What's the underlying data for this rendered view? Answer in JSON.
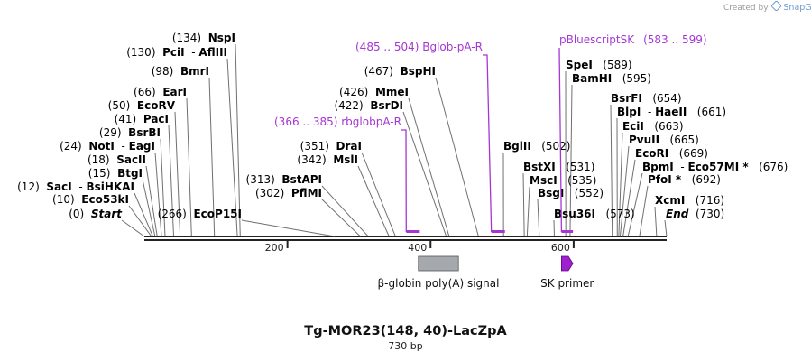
{
  "branding": {
    "prefix": "Created by",
    "brand": "SnapGene"
  },
  "map": {
    "title": "Tg-MOR23(148, 40)-LacZpA",
    "subtitle": "730 bp",
    "length": 730,
    "ticks": [
      200,
      400,
      600
    ],
    "enzymes": [
      {
        "pos": "(0)",
        "name": "Start",
        "site": 0,
        "italic": true
      },
      {
        "pos": "(10)",
        "name": "Eco53kI",
        "site": 10
      },
      {
        "pos": "(12)",
        "name": "SacI",
        "name2": "BsiHKAI",
        "site": 12
      },
      {
        "pos": "(15)",
        "name": "BtgI",
        "site": 15
      },
      {
        "pos": "(18)",
        "name": "SacII",
        "site": 18
      },
      {
        "pos": "(24)",
        "name": "NotI",
        "name2": "EagI",
        "site": 24
      },
      {
        "pos": "(29)",
        "name": "BsrBI",
        "site": 29
      },
      {
        "pos": "(41)",
        "name": "PacI",
        "site": 41
      },
      {
        "pos": "(50)",
        "name": "EcoRV",
        "site": 50
      },
      {
        "pos": "(66)",
        "name": "EarI",
        "site": 66
      },
      {
        "pos": "(98)",
        "name": "BmrI",
        "site": 98
      },
      {
        "pos": "(130)",
        "name": "PciI",
        "name2": "AflIII",
        "site": 130
      },
      {
        "pos": "(134)",
        "name": "NspI",
        "site": 134
      },
      {
        "pos": "(266)",
        "name": "EcoP15I",
        "site": 266
      },
      {
        "pos": "(302)",
        "name": "PflMI",
        "site": 302
      },
      {
        "pos": "(313)",
        "name": "BstAPI",
        "site": 313
      },
      {
        "pos": "(342)",
        "name": "MslI",
        "site": 342
      },
      {
        "pos": "(351)",
        "name": "DraI",
        "site": 351
      },
      {
        "pos": "(422)",
        "name": "BsrDI",
        "site": 422
      },
      {
        "pos": "(426)",
        "name": "MmeI",
        "site": 426
      },
      {
        "pos": "(467)",
        "name": "BspHI",
        "site": 467
      },
      {
        "pos": "(502)",
        "name": "BglII",
        "site": 502
      },
      {
        "pos": "(531)",
        "name": "BstXI",
        "site": 531
      },
      {
        "pos": "(535)",
        "name": "MscI",
        "site": 535
      },
      {
        "pos": "(552)",
        "name": "BsgI",
        "site": 552
      },
      {
        "pos": "(573)",
        "name": "Bsu36I",
        "site": 573
      },
      {
        "pos": "(589)",
        "name": "SpeI",
        "site": 589
      },
      {
        "pos": "(595)",
        "name": "BamHI",
        "site": 595
      },
      {
        "pos": "(654)",
        "name": "BsrFI",
        "site": 654
      },
      {
        "pos": "(661)",
        "name": "BlpI",
        "name2": "HaeII",
        "site": 661
      },
      {
        "pos": "(663)",
        "name": "EciI",
        "site": 663
      },
      {
        "pos": "(665)",
        "name": "PvuII",
        "site": 665
      },
      {
        "pos": "(669)",
        "name": "EcoRI",
        "site": 669
      },
      {
        "pos": "(676)",
        "name": "BpmI",
        "name2": "Eco57MI *",
        "site": 676
      },
      {
        "pos": "(692)",
        "name": "PfoI *",
        "site": 692
      },
      {
        "pos": "(716)",
        "name": "XcmI",
        "site": 716
      },
      {
        "pos": "(730)",
        "name": "End",
        "site": 730,
        "italic": true
      }
    ],
    "primers": [
      {
        "name": "rbglobpA-R",
        "range": "(366 .. 385)",
        "start": 366,
        "end": 385
      },
      {
        "name": "Bglob-pA-R",
        "range": "(485 .. 504)",
        "start": 485,
        "end": 504
      },
      {
        "name": "pBluescriptSK",
        "range": "(583 .. 599)",
        "start": 583,
        "end": 599
      }
    ],
    "features": [
      {
        "name": "β-globin poly(A) signal",
        "start": 383,
        "end": 439,
        "type": "polyA",
        "color": "#a5a9ae"
      },
      {
        "name": "SK primer",
        "start": 583,
        "end": 599,
        "type": "primer_bind",
        "color": "#a020d0"
      }
    ],
    "colors": {
      "primer": "#a536d3",
      "line": "#707070",
      "backbone": "#222222"
    }
  }
}
